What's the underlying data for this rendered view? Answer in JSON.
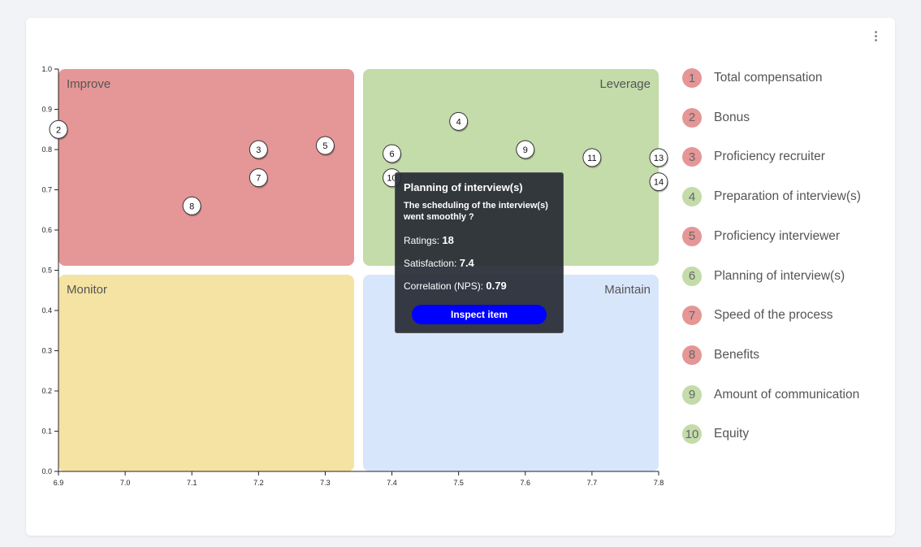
{
  "chart_data": {
    "type": "scatter",
    "xlim": [
      6.9,
      7.8
    ],
    "ylim": [
      0.0,
      1.0
    ],
    "x_ticks": [
      "6.9",
      "7.0",
      "7.1",
      "7.2",
      "7.3",
      "7.4",
      "7.5",
      "7.6",
      "7.7",
      "7.8"
    ],
    "y_ticks": [
      "0.0",
      "0.1",
      "0.2",
      "0.3",
      "0.4",
      "0.5",
      "0.6",
      "0.7",
      "0.8",
      "0.9",
      "1.0"
    ],
    "quadrants": [
      {
        "name": "Improve",
        "color": "#e59696"
      },
      {
        "name": "Leverage",
        "color": "#c4dbaa"
      },
      {
        "name": "Monitor",
        "color": "#f4e3a2"
      },
      {
        "name": "Maintain",
        "color": "#d8e6fb"
      }
    ],
    "points": [
      {
        "id": "2",
        "x": 6.9,
        "y": 0.85
      },
      {
        "id": "3",
        "x": 7.2,
        "y": 0.8
      },
      {
        "id": "5",
        "x": 7.3,
        "y": 0.81
      },
      {
        "id": "7",
        "x": 7.2,
        "y": 0.73
      },
      {
        "id": "8",
        "x": 7.1,
        "y": 0.66
      },
      {
        "id": "4",
        "x": 7.5,
        "y": 0.87
      },
      {
        "id": "6",
        "x": 7.4,
        "y": 0.79
      },
      {
        "id": "9",
        "x": 7.6,
        "y": 0.8
      },
      {
        "id": "11",
        "x": 7.7,
        "y": 0.78
      },
      {
        "id": "13",
        "x": 7.8,
        "y": 0.78
      },
      {
        "id": "14",
        "x": 7.8,
        "y": 0.72
      },
      {
        "id": "10",
        "x": 7.4,
        "y": 0.73
      }
    ]
  },
  "legend": [
    {
      "num": "1",
      "label": "Total compensation",
      "color": "#e59696"
    },
    {
      "num": "2",
      "label": "Bonus",
      "color": "#e59696"
    },
    {
      "num": "3",
      "label": "Proficiency recruiter",
      "color": "#e59696"
    },
    {
      "num": "4",
      "label": "Preparation of interview(s)",
      "color": "#c4dbaa"
    },
    {
      "num": "5",
      "label": "Proficiency interviewer",
      "color": "#e59696"
    },
    {
      "num": "6",
      "label": "Planning of interview(s)",
      "color": "#c4dbaa"
    },
    {
      "num": "7",
      "label": "Speed of the process",
      "color": "#e59696"
    },
    {
      "num": "8",
      "label": "Benefits",
      "color": "#e59696"
    },
    {
      "num": "9",
      "label": "Amount of communication",
      "color": "#c4dbaa"
    },
    {
      "num": "10",
      "label": "Equity",
      "color": "#c4dbaa"
    }
  ],
  "tooltip": {
    "title": "Planning of interview(s)",
    "subtitle": "The scheduling of the interview(s) went smoothly ?",
    "ratings_label": "Ratings:",
    "ratings_value": "18",
    "satisfaction_label": "Satisfaction:",
    "satisfaction_value": "7.4",
    "correlation_label": "Correlation (NPS):",
    "correlation_value": "0.79",
    "button_label": "Inspect item"
  }
}
